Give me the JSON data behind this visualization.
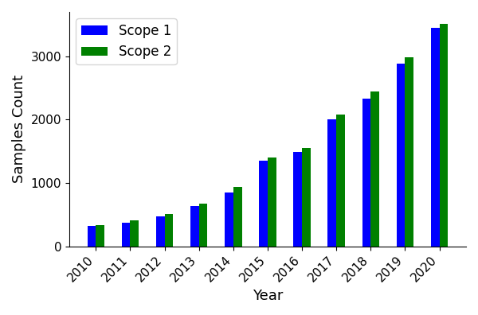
{
  "years": [
    2010,
    2011,
    2012,
    2013,
    2014,
    2015,
    2016,
    2017,
    2018,
    2019,
    2020
  ],
  "scope1": [
    320,
    380,
    470,
    640,
    850,
    1350,
    1490,
    2010,
    2330,
    2880,
    3450
  ],
  "scope2": [
    340,
    410,
    510,
    680,
    940,
    1400,
    1550,
    2080,
    2450,
    2980,
    3510
  ],
  "scope1_color": "#0000ff",
  "scope2_color": "#008000",
  "xlabel": "Year",
  "ylabel": "Samples Count",
  "ylim": [
    0,
    3700
  ],
  "yticks": [
    0,
    1000,
    2000,
    3000
  ],
  "bar_width": 0.25,
  "legend_labels": [
    "Scope 1",
    "Scope 2"
  ],
  "legend_fontsize": 12,
  "axis_fontsize": 13,
  "tick_fontsize": 11
}
